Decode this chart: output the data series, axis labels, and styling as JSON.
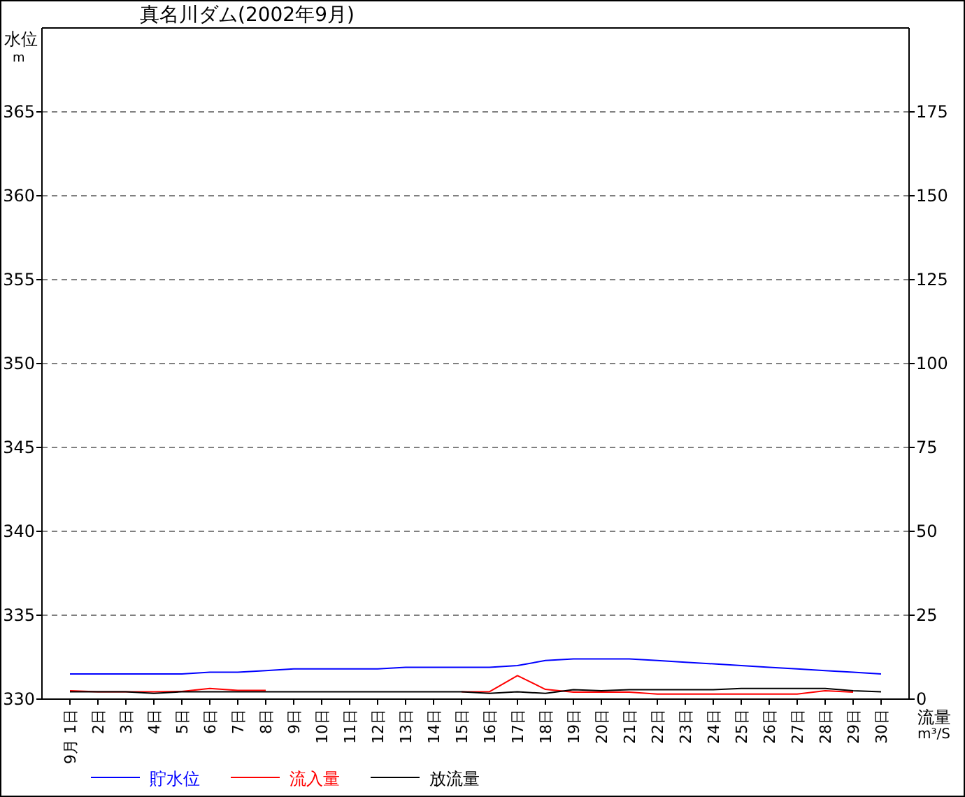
{
  "chart_data": {
    "type": "line",
    "title": "真名川ダム(2002年9月)",
    "ylabel": "水位",
    "y2label": "流量",
    "annotations": [
      "m",
      "m³/S"
    ],
    "categories": [
      "9月 1日",
      "2日",
      "3日",
      "4日",
      "5日",
      "6日",
      "7日",
      "8日",
      "9日",
      "10日",
      "11日",
      "12日",
      "13日",
      "14日",
      "15日",
      "16日",
      "17日",
      "18日",
      "19日",
      "20日",
      "21日",
      "22日",
      "23日",
      "24日",
      "25日",
      "26日",
      "27日",
      "28日",
      "29日",
      "30日"
    ],
    "series": [
      {
        "name": "貯水位",
        "color": "#0000ff",
        "values": [
          331.5,
          331.5,
          331.5,
          331.5,
          331.5,
          331.6,
          331.6,
          331.7,
          331.8,
          331.8,
          331.8,
          331.8,
          331.9,
          331.9,
          331.9,
          331.9,
          332.0,
          332.3,
          332.4,
          332.4,
          332.4,
          332.3,
          332.2,
          332.1,
          332.0,
          331.9,
          331.8,
          331.7,
          331.6,
          331.5
        ]
      },
      {
        "name": "流入量",
        "color": "#ff0000",
        "axis": "y2",
        "values": [
          2.5,
          2.2,
          2.2,
          2.2,
          2.3,
          3.2,
          2.6,
          2.6,
          null,
          null,
          null,
          null,
          null,
          null,
          2.2,
          2.2,
          7.0,
          2.9,
          2.1,
          2.1,
          2.1,
          1.5,
          1.5,
          1.5,
          1.5,
          1.5,
          1.5,
          2.5,
          2.1,
          null
        ]
      },
      {
        "name": "放流量",
        "color": "#000000",
        "axis": "y2",
        "values": [
          2.2,
          2.2,
          2.2,
          1.7,
          2.2,
          2.2,
          2.2,
          2.2,
          2.2,
          2.2,
          2.2,
          2.2,
          2.2,
          2.2,
          2.2,
          1.7,
          2.2,
          1.7,
          2.8,
          2.5,
          2.8,
          2.8,
          2.8,
          2.8,
          3.2,
          3.2,
          3.2,
          3.2,
          2.5,
          2.2
        ]
      }
    ],
    "ylim": [
      330,
      370
    ],
    "yticks": [
      330,
      335,
      340,
      345,
      350,
      355,
      360,
      365
    ],
    "y2lim": [
      0,
      200
    ],
    "y2ticks": [
      0,
      25,
      50,
      75,
      100,
      125,
      150,
      175
    ],
    "grid": "y",
    "legend": "bottom",
    "marker": "none",
    "line_style": "solid"
  }
}
